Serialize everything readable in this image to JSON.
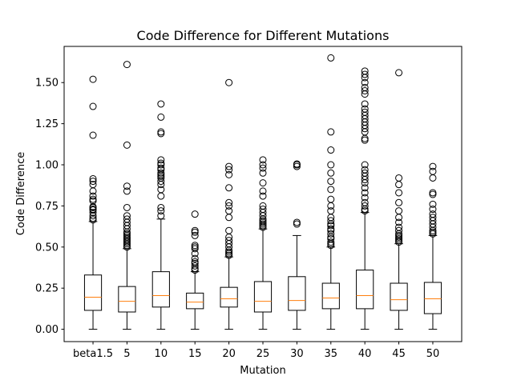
{
  "chart_data": {
    "type": "box",
    "title": "Code Difference for Different Mutations",
    "xlabel": "Mutation",
    "ylabel": "Code Difference",
    "ylim": [
      -0.075,
      1.72
    ],
    "yticks": [
      0.0,
      0.25,
      0.5,
      0.75,
      1.0,
      1.25,
      1.5
    ],
    "ytick_labels": [
      "0.00",
      "0.25",
      "0.50",
      "0.75",
      "1.00",
      "1.25",
      "1.50"
    ],
    "categories": [
      "beta1.5",
      "5",
      "10",
      "15",
      "20",
      "25",
      "30",
      "35",
      "40",
      "45",
      "50"
    ],
    "colors": {
      "box": "#000000",
      "median": "#ff7f0e",
      "flier": "#000000"
    },
    "series": [
      {
        "name": "beta1.5",
        "min": 0.0,
        "q1": 0.115,
        "median": 0.195,
        "q3": 0.33,
        "max": 0.655,
        "fliers": [
          0.665,
          0.675,
          0.69,
          0.71,
          0.725,
          0.73,
          0.74,
          0.745,
          0.78,
          0.79,
          0.81,
          0.84,
          0.88,
          0.9,
          0.915,
          1.18,
          1.355,
          1.52
        ]
      },
      {
        "name": "5",
        "min": 0.0,
        "q1": 0.105,
        "median": 0.17,
        "q3": 0.26,
        "max": 0.49,
        "fliers": [
          0.5,
          0.51,
          0.52,
          0.53,
          0.54,
          0.55,
          0.56,
          0.57,
          0.58,
          0.59,
          0.61,
          0.63,
          0.65,
          0.67,
          0.69,
          0.74,
          0.84,
          0.87,
          1.12,
          1.61
        ]
      },
      {
        "name": "10",
        "min": 0.0,
        "q1": 0.135,
        "median": 0.205,
        "q3": 0.35,
        "max": 0.67,
        "fliers": [
          0.69,
          0.72,
          0.74,
          0.81,
          0.85,
          0.88,
          0.9,
          0.92,
          0.93,
          0.94,
          0.95,
          0.97,
          0.98,
          1.0,
          1.01,
          1.03,
          1.19,
          1.2,
          1.29,
          1.37
        ]
      },
      {
        "name": "15",
        "min": 0.0,
        "q1": 0.125,
        "median": 0.165,
        "q3": 0.22,
        "max": 0.35,
        "fliers": [
          0.36,
          0.37,
          0.385,
          0.4,
          0.41,
          0.43,
          0.46,
          0.49,
          0.5,
          0.51,
          0.57,
          0.59,
          0.6,
          0.7
        ]
      },
      {
        "name": "20",
        "min": 0.0,
        "q1": 0.135,
        "median": 0.185,
        "q3": 0.255,
        "max": 0.44,
        "fliers": [
          0.45,
          0.46,
          0.47,
          0.48,
          0.5,
          0.52,
          0.54,
          0.56,
          0.6,
          0.68,
          0.72,
          0.75,
          0.77,
          0.86,
          0.94,
          0.97,
          0.99,
          1.5
        ]
      },
      {
        "name": "25",
        "min": 0.0,
        "q1": 0.105,
        "median": 0.17,
        "q3": 0.29,
        "max": 0.61,
        "fliers": [
          0.62,
          0.63,
          0.64,
          0.65,
          0.66,
          0.67,
          0.69,
          0.71,
          0.73,
          0.75,
          0.81,
          0.84,
          0.89,
          0.95,
          0.98,
          1.0,
          1.03
        ]
      },
      {
        "name": "30",
        "min": 0.0,
        "q1": 0.115,
        "median": 0.175,
        "q3": 0.32,
        "max": 0.57,
        "fliers": [
          0.64,
          0.65,
          0.99,
          1.0,
          1.005
        ]
      },
      {
        "name": "35",
        "min": 0.0,
        "q1": 0.125,
        "median": 0.19,
        "q3": 0.28,
        "max": 0.5,
        "fliers": [
          0.51,
          0.52,
          0.53,
          0.55,
          0.56,
          0.58,
          0.6,
          0.61,
          0.63,
          0.64,
          0.66,
          0.68,
          0.72,
          0.75,
          0.79,
          0.85,
          0.9,
          0.95,
          1.0,
          1.09,
          1.2,
          1.65
        ]
      },
      {
        "name": "40",
        "min": 0.0,
        "q1": 0.125,
        "median": 0.205,
        "q3": 0.36,
        "max": 0.71,
        "fliers": [
          0.72,
          0.73,
          0.75,
          0.77,
          0.8,
          0.83,
          0.86,
          0.89,
          0.91,
          0.93,
          0.95,
          0.97,
          1.0,
          1.15,
          1.16,
          1.2,
          1.22,
          1.24,
          1.26,
          1.28,
          1.3,
          1.32,
          1.34,
          1.37,
          1.43,
          1.45,
          1.47,
          1.5,
          1.53,
          1.55,
          1.57
        ]
      },
      {
        "name": "45",
        "min": 0.0,
        "q1": 0.115,
        "median": 0.18,
        "q3": 0.28,
        "max": 0.52,
        "fliers": [
          0.53,
          0.54,
          0.55,
          0.56,
          0.57,
          0.58,
          0.6,
          0.62,
          0.65,
          0.68,
          0.72,
          0.77,
          0.83,
          0.88,
          0.92,
          1.56
        ]
      },
      {
        "name": "50",
        "min": 0.0,
        "q1": 0.095,
        "median": 0.185,
        "q3": 0.285,
        "max": 0.57,
        "fliers": [
          0.58,
          0.59,
          0.6,
          0.62,
          0.64,
          0.66,
          0.68,
          0.7,
          0.73,
          0.76,
          0.82,
          0.83,
          0.92,
          0.96,
          0.99
        ]
      }
    ]
  }
}
